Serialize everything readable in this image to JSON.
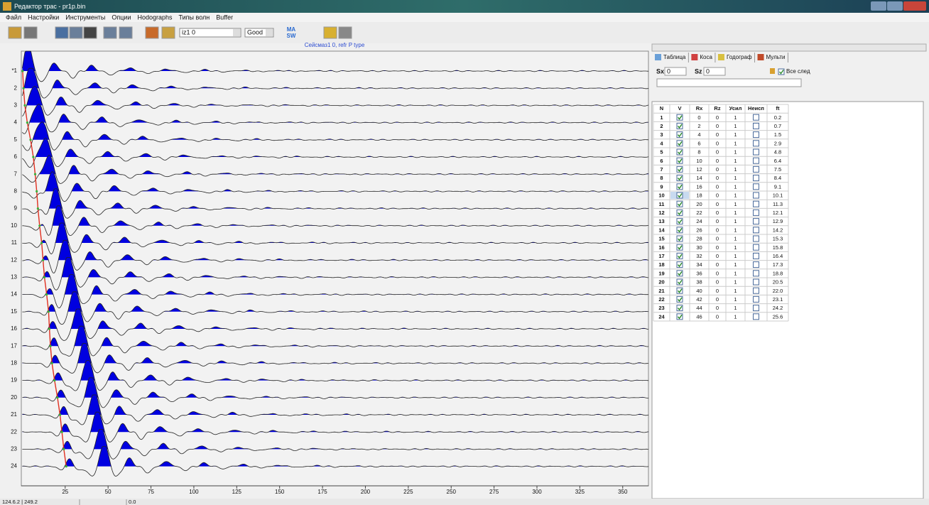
{
  "window": {
    "title": "Редактор трас - pr1p.bin"
  },
  "menu": [
    "Файл",
    "Настройки",
    "Инструменты",
    "Опции",
    "Hodographs",
    "Типы волн",
    "Buffer"
  ],
  "toolbar": {
    "combo1": "iz1 0",
    "combo2": "Good",
    "masw": [
      "MA",
      "SW"
    ]
  },
  "chart_data": {
    "type": "wiggle",
    "title": "Сейсмаз1 0, refr P type",
    "categories": [
      "*1",
      "2",
      "3",
      "4",
      "5",
      "6",
      "7",
      "8",
      "9",
      "10",
      "11",
      "12",
      "13",
      "14",
      "15",
      "16",
      "17",
      "18",
      "19",
      "20",
      "21",
      "22",
      "23",
      "24"
    ],
    "xlim": [
      0,
      365
    ],
    "xticks": [
      25,
      50,
      75,
      100,
      125,
      150,
      175,
      200,
      225,
      250,
      275,
      300,
      325,
      350
    ],
    "pick_color": "#e03020",
    "fill_color": "#0000e0"
  },
  "tabs": [
    "Таблица",
    "Коса",
    "Годограф",
    "Мульти"
  ],
  "source": {
    "sx_label": "Sx",
    "sx_value": "0",
    "sz_label": "Sz",
    "sz_value": "0"
  },
  "all_traces": {
    "label": "Все след",
    "checked": true
  },
  "table": {
    "headers": [
      "N",
      "V",
      "Rx",
      "Rz",
      "Усил",
      "Неисп",
      "ft"
    ],
    "selected_row": 9,
    "rows": [
      [
        1,
        true,
        0,
        0,
        1,
        false,
        "0.2"
      ],
      [
        2,
        true,
        2,
        0,
        1,
        false,
        "0.7"
      ],
      [
        3,
        true,
        4,
        0,
        1,
        false,
        "1.5"
      ],
      [
        4,
        true,
        6,
        0,
        1,
        false,
        "2.9"
      ],
      [
        5,
        true,
        8,
        0,
        1,
        false,
        "4.8"
      ],
      [
        6,
        true,
        10,
        0,
        1,
        false,
        "6.4"
      ],
      [
        7,
        true,
        12,
        0,
        1,
        false,
        "7.5"
      ],
      [
        8,
        true,
        14,
        0,
        1,
        false,
        "8.4"
      ],
      [
        9,
        true,
        16,
        0,
        1,
        false,
        "9.1"
      ],
      [
        10,
        true,
        18,
        0,
        1,
        false,
        "10.1"
      ],
      [
        11,
        true,
        20,
        0,
        1,
        false,
        "11.3"
      ],
      [
        12,
        true,
        22,
        0,
        1,
        false,
        "12.1"
      ],
      [
        13,
        true,
        24,
        0,
        1,
        false,
        "12.9"
      ],
      [
        14,
        true,
        26,
        0,
        1,
        false,
        "14.2"
      ],
      [
        15,
        true,
        28,
        0,
        1,
        false,
        "15.3"
      ],
      [
        16,
        true,
        30,
        0,
        1,
        false,
        "15.8"
      ],
      [
        17,
        true,
        32,
        0,
        1,
        false,
        "16.4"
      ],
      [
        18,
        true,
        34,
        0,
        1,
        false,
        "17.3"
      ],
      [
        19,
        true,
        36,
        0,
        1,
        false,
        "18.8"
      ],
      [
        20,
        true,
        38,
        0,
        1,
        false,
        "20.5"
      ],
      [
        21,
        true,
        40,
        0,
        1,
        false,
        "22.0"
      ],
      [
        22,
        true,
        42,
        0,
        1,
        false,
        "23.1"
      ],
      [
        23,
        true,
        44,
        0,
        1,
        false,
        "24.2"
      ],
      [
        24,
        true,
        46,
        0,
        1,
        false,
        "25.6"
      ]
    ]
  },
  "status": [
    "124.6.2 | 249.2",
    "0.0"
  ]
}
